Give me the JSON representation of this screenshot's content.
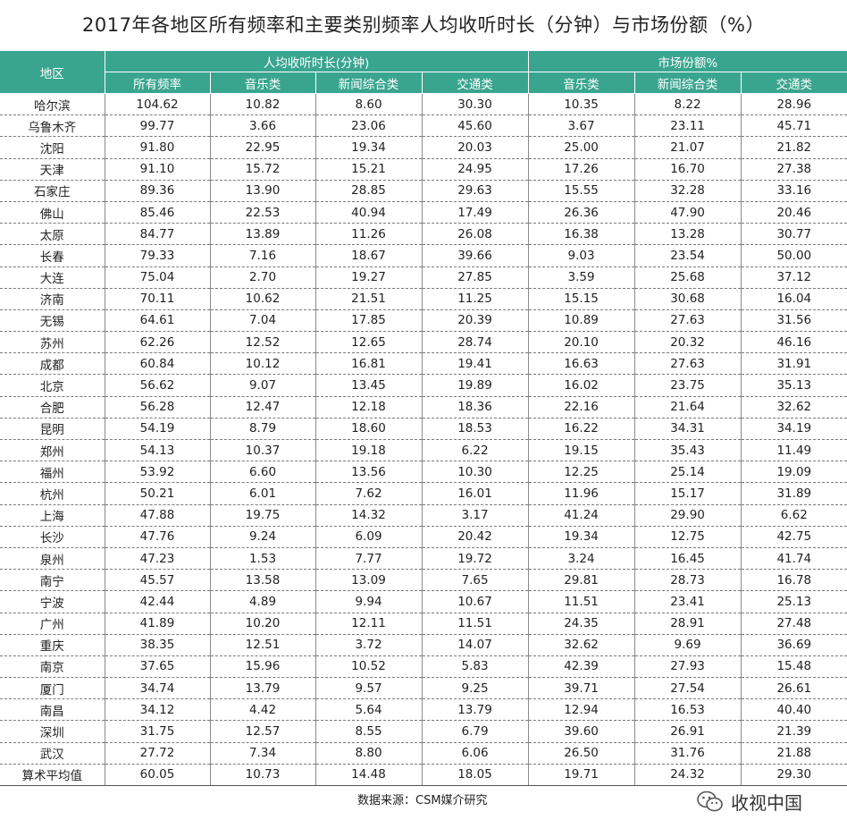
{
  "title": "2017年各地区所有频率和主要类别频率人均收听时长（分钟）与市场份额（%）",
  "headers": {
    "region": "地区",
    "group_time": "人均收听时长(分钟)",
    "group_share": "市场份额%",
    "sub": [
      "所有频率",
      "音乐类",
      "新闻综合类",
      "交通类",
      "音乐类",
      "新闻综合类",
      "交通类"
    ]
  },
  "rows": [
    [
      "哈尔滨",
      "104.62",
      "10.82",
      "8.60",
      "30.30",
      "10.35",
      "8.22",
      "28.96"
    ],
    [
      "乌鲁木齐",
      "99.77",
      "3.66",
      "23.06",
      "45.60",
      "3.67",
      "23.11",
      "45.71"
    ],
    [
      "沈阳",
      "91.80",
      "22.95",
      "19.34",
      "20.03",
      "25.00",
      "21.07",
      "21.82"
    ],
    [
      "天津",
      "91.10",
      "15.72",
      "15.21",
      "24.95",
      "17.26",
      "16.70",
      "27.38"
    ],
    [
      "石家庄",
      "89.36",
      "13.90",
      "28.85",
      "29.63",
      "15.55",
      "32.28",
      "33.16"
    ],
    [
      "佛山",
      "85.46",
      "22.53",
      "40.94",
      "17.49",
      "26.36",
      "47.90",
      "20.46"
    ],
    [
      "太原",
      "84.77",
      "13.89",
      "11.26",
      "26.08",
      "16.38",
      "13.28",
      "30.77"
    ],
    [
      "长春",
      "79.33",
      "7.16",
      "18.67",
      "39.66",
      "9.03",
      "23.54",
      "50.00"
    ],
    [
      "大连",
      "75.04",
      "2.70",
      "19.27",
      "27.85",
      "3.59",
      "25.68",
      "37.12"
    ],
    [
      "济南",
      "70.11",
      "10.62",
      "21.51",
      "11.25",
      "15.15",
      "30.68",
      "16.04"
    ],
    [
      "无锡",
      "64.61",
      "7.04",
      "17.85",
      "20.39",
      "10.89",
      "27.63",
      "31.56"
    ],
    [
      "苏州",
      "62.26",
      "12.52",
      "12.65",
      "28.74",
      "20.10",
      "20.32",
      "46.16"
    ],
    [
      "成都",
      "60.84",
      "10.12",
      "16.81",
      "19.41",
      "16.63",
      "27.63",
      "31.91"
    ],
    [
      "北京",
      "56.62",
      "9.07",
      "13.45",
      "19.89",
      "16.02",
      "23.75",
      "35.13"
    ],
    [
      "合肥",
      "56.28",
      "12.47",
      "12.18",
      "18.36",
      "22.16",
      "21.64",
      "32.62"
    ],
    [
      "昆明",
      "54.19",
      "8.79",
      "18.60",
      "18.53",
      "16.22",
      "34.31",
      "34.19"
    ],
    [
      "郑州",
      "54.13",
      "10.37",
      "19.18",
      "6.22",
      "19.15",
      "35.43",
      "11.49"
    ],
    [
      "福州",
      "53.92",
      "6.60",
      "13.56",
      "10.30",
      "12.25",
      "25.14",
      "19.09"
    ],
    [
      "杭州",
      "50.21",
      "6.01",
      "7.62",
      "16.01",
      "11.96",
      "15.17",
      "31.89"
    ],
    [
      "上海",
      "47.88",
      "19.75",
      "14.32",
      "3.17",
      "41.24",
      "29.90",
      "6.62"
    ],
    [
      "长沙",
      "47.76",
      "9.24",
      "6.09",
      "20.42",
      "19.34",
      "12.75",
      "42.75"
    ],
    [
      "泉州",
      "47.23",
      "1.53",
      "7.77",
      "19.72",
      "3.24",
      "16.45",
      "41.74"
    ],
    [
      "南宁",
      "45.57",
      "13.58",
      "13.09",
      "7.65",
      "29.81",
      "28.73",
      "16.78"
    ],
    [
      "宁波",
      "42.44",
      "4.89",
      "9.94",
      "10.67",
      "11.51",
      "23.41",
      "25.13"
    ],
    [
      "广州",
      "41.89",
      "10.20",
      "12.11",
      "11.51",
      "24.35",
      "28.91",
      "27.48"
    ],
    [
      "重庆",
      "38.35",
      "12.51",
      "3.72",
      "14.07",
      "32.62",
      "9.69",
      "36.69"
    ],
    [
      "南京",
      "37.65",
      "15.96",
      "10.52",
      "5.83",
      "42.39",
      "27.93",
      "15.48"
    ],
    [
      "厦门",
      "34.74",
      "13.79",
      "9.57",
      "9.25",
      "39.71",
      "27.54",
      "26.61"
    ],
    [
      "南昌",
      "34.12",
      "4.42",
      "5.64",
      "13.79",
      "12.94",
      "16.53",
      "40.40"
    ],
    [
      "深圳",
      "31.75",
      "12.57",
      "8.55",
      "6.79",
      "39.60",
      "26.91",
      "21.39"
    ],
    [
      "武汉",
      "27.72",
      "7.34",
      "8.80",
      "6.06",
      "26.50",
      "31.76",
      "21.88"
    ],
    [
      "算术平均值",
      "60.05",
      "10.73",
      "14.48",
      "18.05",
      "19.71",
      "24.32",
      "29.30"
    ]
  ],
  "footer": {
    "source": "数据来源：CSM媒介研究",
    "brand": "收视中国"
  },
  "colors": {
    "header_bg": "#3aa58f",
    "header_text": "#ffffff"
  },
  "icons": {
    "brand": "wechat-icon"
  }
}
